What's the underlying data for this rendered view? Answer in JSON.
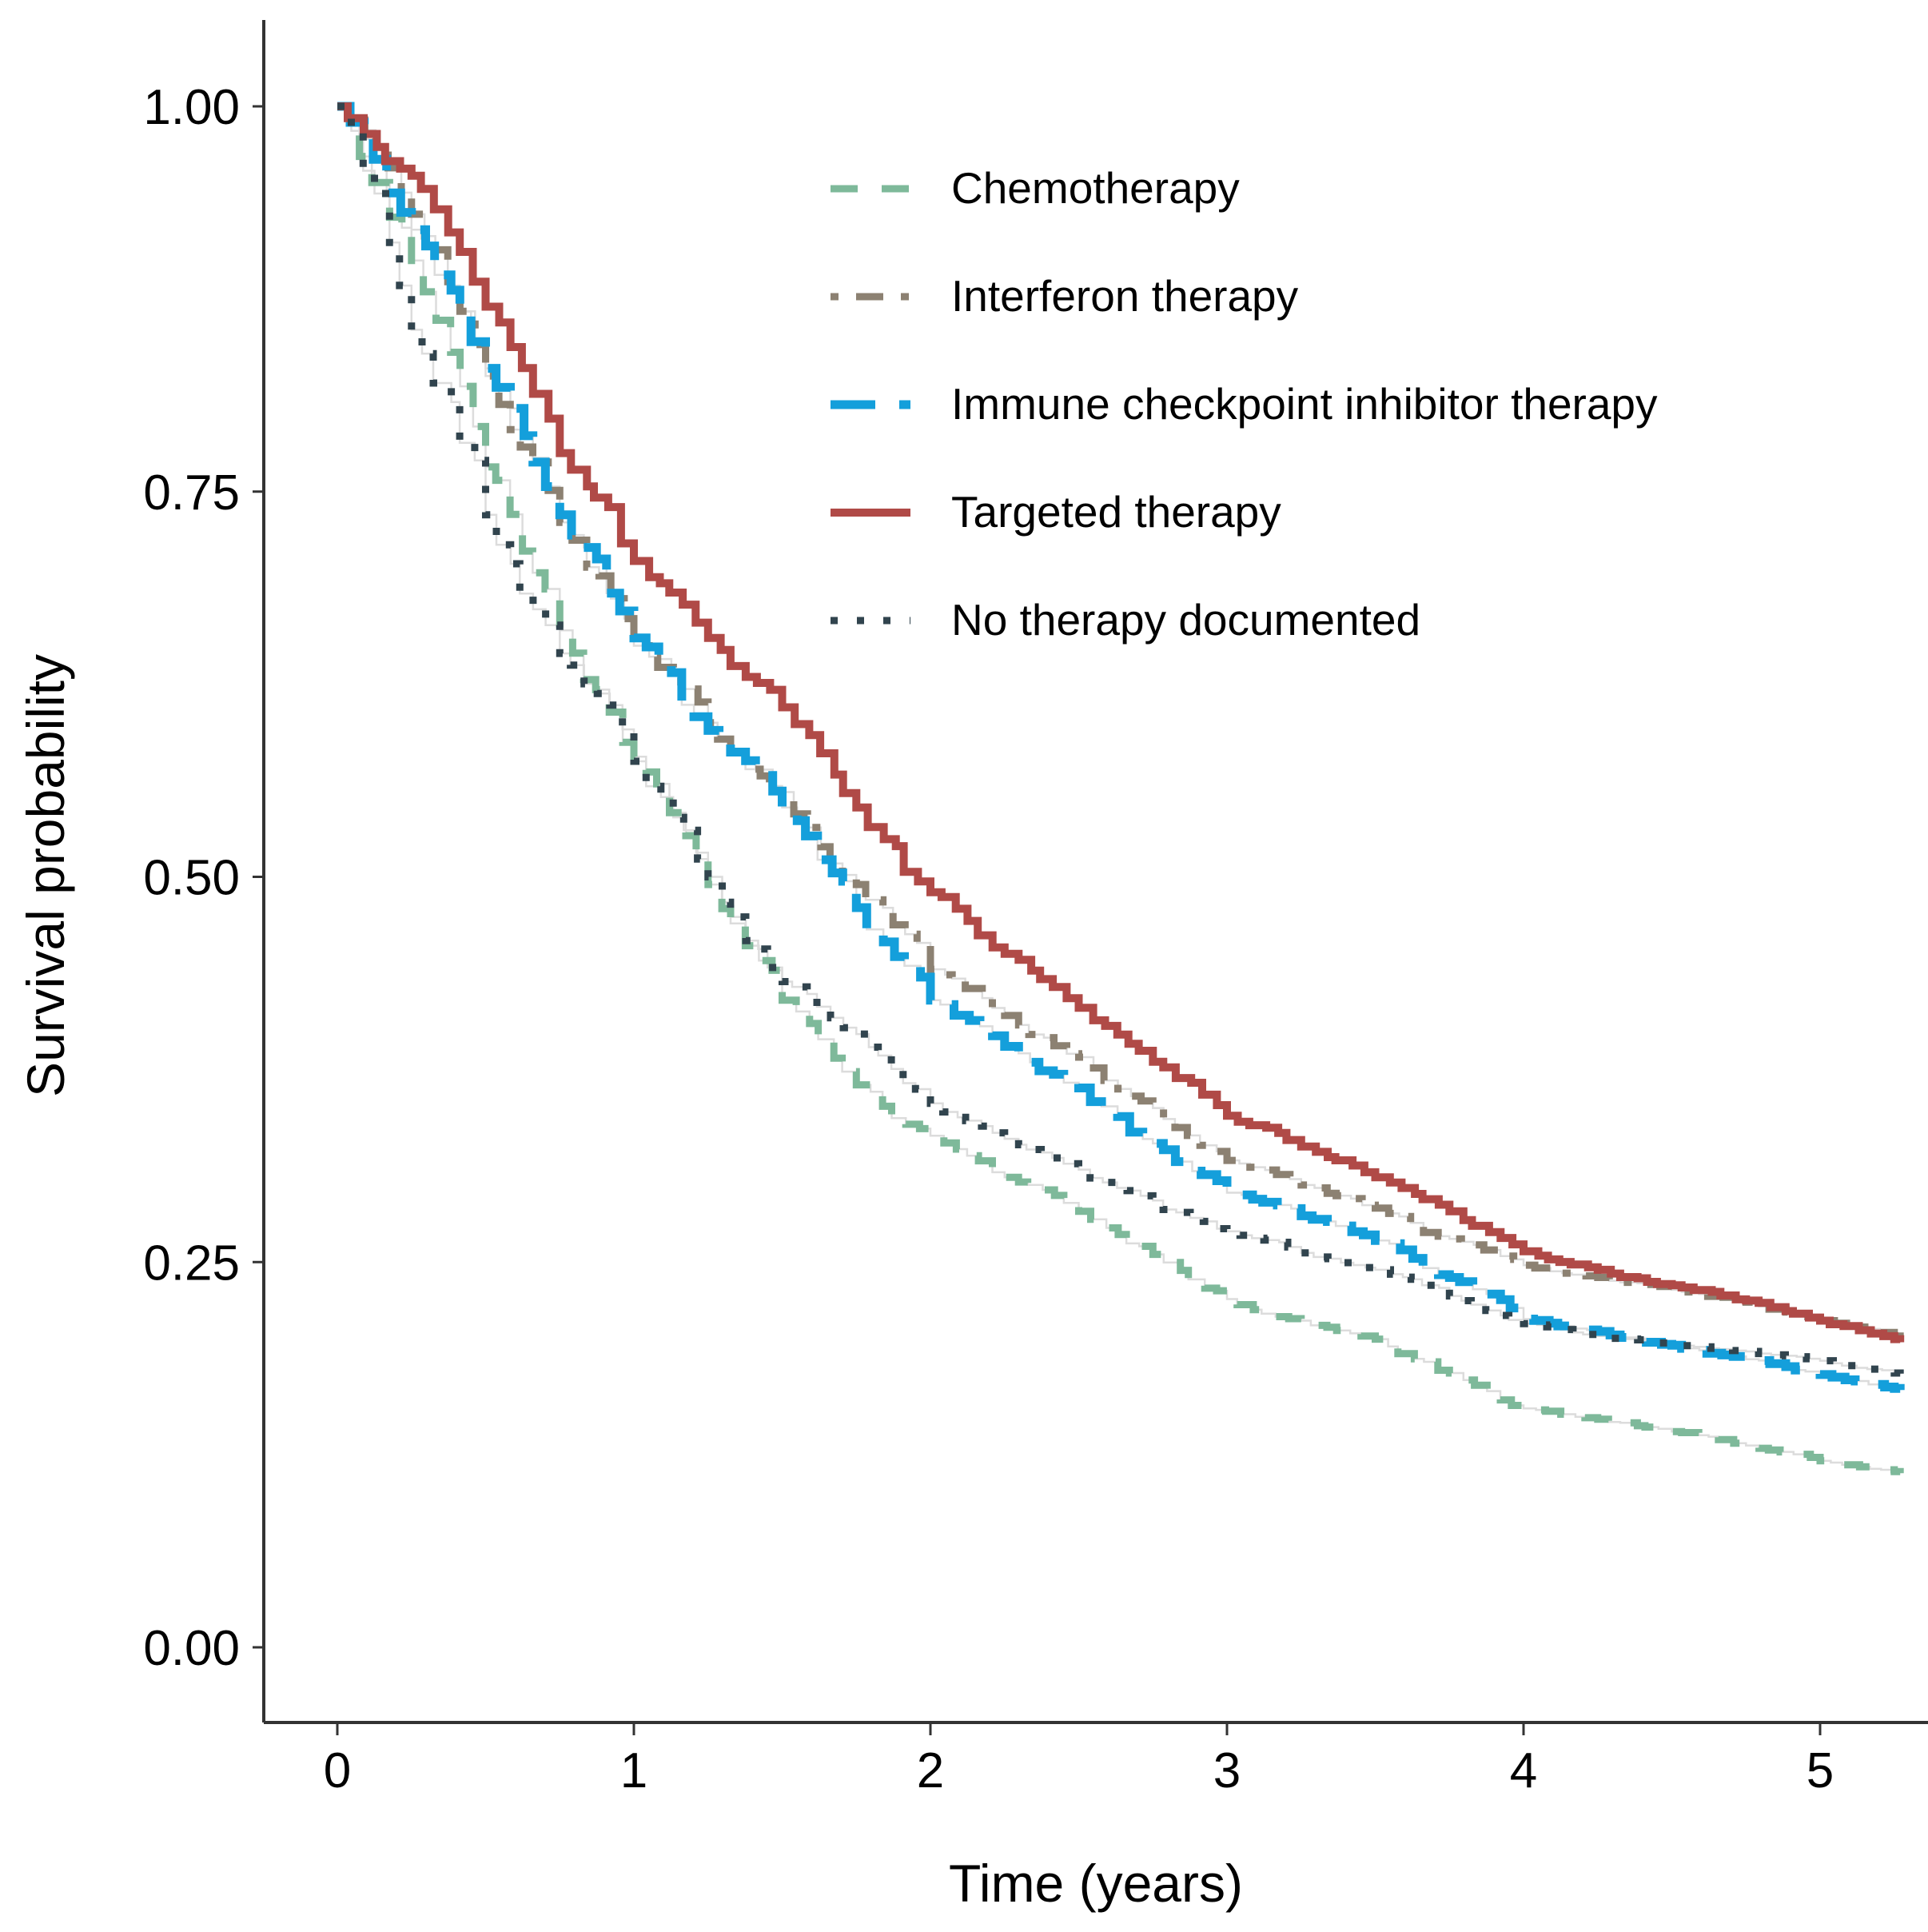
{
  "figure": {
    "background": "#ffffff",
    "axis_color": "#333333",
    "underlay_color": "#dcdcdc"
  },
  "chart_data": {
    "type": "line",
    "subtype": "kaplan-meier-step-curves",
    "title": "",
    "xlabel": "Time (years)",
    "ylabel": "Survival probability",
    "xlim": [
      0,
      5.3
    ],
    "ylim": [
      0,
      1.0
    ],
    "grid": false,
    "legend_position": "inside-top-center",
    "x_axis": {
      "ticks": [
        0,
        1,
        2,
        3,
        4,
        5
      ],
      "tick_labels": [
        "0",
        "1",
        "2",
        "3",
        "4",
        "5"
      ]
    },
    "y_axis": {
      "ticks": [
        0,
        0.25,
        0.5,
        0.75,
        1.0
      ],
      "tick_labels": [
        "0.00",
        "0.25",
        "0.50",
        "0.75",
        "1.00"
      ]
    },
    "x": [
      0,
      0.25,
      0.5,
      0.75,
      1,
      1.25,
      1.5,
      1.75,
      2,
      2.25,
      2.5,
      2.75,
      3,
      3.25,
      3.5,
      3.75,
      4,
      4.25,
      4.5,
      4.75,
      5,
      5.25,
      5.27
    ],
    "series": [
      {
        "name": "Chemotherapy",
        "color": "#7EB99A",
        "linetype": "dashed",
        "width": 9,
        "values": [
          1.0,
          0.9,
          0.766,
          0.66,
          0.578,
          0.495,
          0.42,
          0.365,
          0.332,
          0.305,
          0.283,
          0.255,
          0.226,
          0.212,
          0.2,
          0.178,
          0.155,
          0.148,
          0.14,
          0.131,
          0.121,
          0.114,
          0.113
        ]
      },
      {
        "name": "Interferon therapy",
        "color": "#8C8172",
        "linetype": "dotdash",
        "width": 9,
        "values": [
          1.0,
          0.93,
          0.825,
          0.73,
          0.65,
          0.6,
          0.555,
          0.495,
          0.44,
          0.41,
          0.383,
          0.35,
          0.316,
          0.3,
          0.285,
          0.265,
          0.248,
          0.24,
          0.232,
          0.224,
          0.212,
          0.202,
          0.201
        ]
      },
      {
        "name": "Immune checkpoint inhibitor therapy",
        "color": "#149FDB",
        "linetype": "longdash",
        "width": 11,
        "values": [
          1.0,
          0.92,
          0.83,
          0.735,
          0.655,
          0.595,
          0.545,
          0.48,
          0.42,
          0.39,
          0.363,
          0.327,
          0.295,
          0.28,
          0.264,
          0.24,
          0.213,
          0.205,
          0.196,
          0.187,
          0.177,
          0.168,
          0.167
        ]
      },
      {
        "name": "Targeted therapy",
        "color": "#B04A47",
        "linetype": "solid",
        "width": 10,
        "values": [
          1.0,
          0.955,
          0.87,
          0.775,
          0.705,
          0.655,
          0.61,
          0.545,
          0.49,
          0.45,
          0.415,
          0.38,
          0.345,
          0.325,
          0.305,
          0.283,
          0.257,
          0.245,
          0.235,
          0.225,
          0.212,
          0.2,
          0.198
        ]
      },
      {
        "name": "No therapy documented",
        "color": "#31444E",
        "linetype": "dotted",
        "width": 9,
        "values": [
          1.0,
          0.855,
          0.735,
          0.645,
          0.575,
          0.5,
          0.432,
          0.398,
          0.353,
          0.33,
          0.31,
          0.29,
          0.27,
          0.256,
          0.245,
          0.228,
          0.21,
          0.202,
          0.197,
          0.192,
          0.186,
          0.178,
          0.177
        ]
      }
    ]
  }
}
